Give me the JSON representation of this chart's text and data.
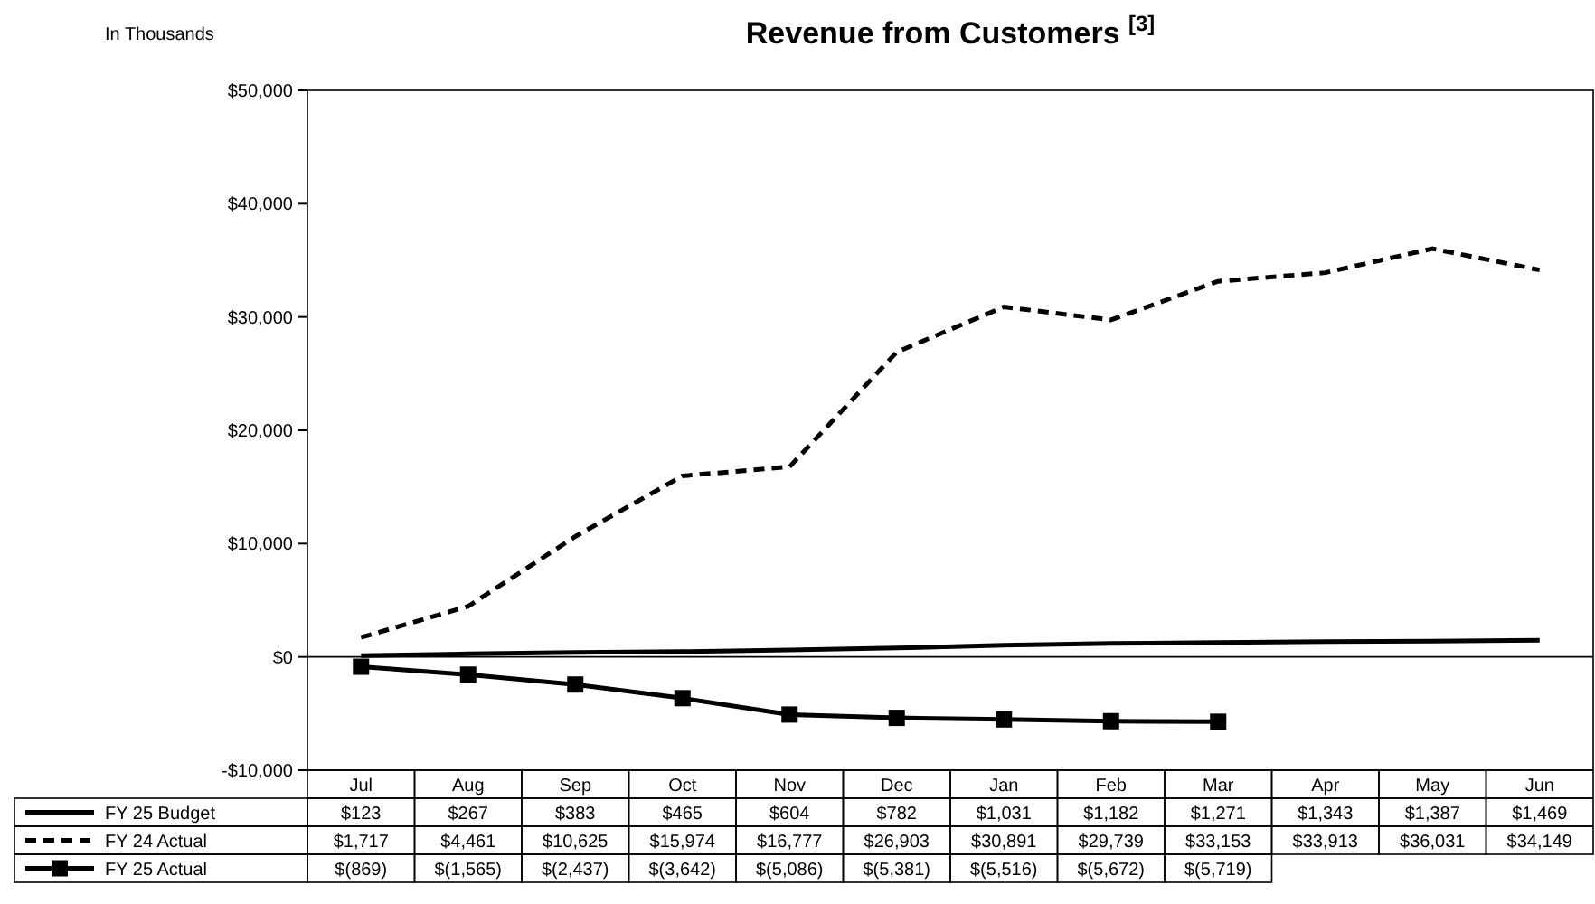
{
  "chart_data": {
    "type": "line",
    "title": "Revenue from Customers $^{[3]}$",
    "ylabel": "In Thousands",
    "categories": [
      "Jul",
      "Aug",
      "Sep",
      "Oct",
      "Nov",
      "Dec",
      "Jan",
      "Feb",
      "Mar",
      "Apr",
      "May",
      "Jun"
    ],
    "ylim": [
      -10000,
      50000
    ],
    "yticks": [
      {
        "value": -10000,
        "label": "-$10,000"
      },
      {
        "value": 0,
        "label": "$0"
      },
      {
        "value": 10000,
        "label": "$10,000"
      },
      {
        "value": 20000,
        "label": "$20,000"
      },
      {
        "value": 30000,
        "label": "$30,000"
      },
      {
        "value": 40000,
        "label": "$40,000"
      },
      {
        "value": 50000,
        "label": "$50,000"
      }
    ],
    "legend": "bottom left",
    "series": [
      {
        "name": "FY 25 Budget",
        "color": "#000000",
        "line_style": "solid",
        "marker": "none",
        "values": [
          123,
          267,
          383,
          465,
          604,
          782,
          1031,
          1182,
          1271,
          1343,
          1387,
          1469
        ],
        "value_labels": [
          "$123",
          "$267",
          "$383",
          "$465",
          "$604",
          "$782",
          "$1,031",
          "$1,182",
          "$1,271",
          "$1,343",
          "$1,387",
          "$1,469"
        ]
      },
      {
        "name": "FY 24 Actual",
        "color": "#000000",
        "line_style": "dashed",
        "marker": "none",
        "values": [
          1717,
          4461,
          10625,
          15974,
          16777,
          26903,
          30891,
          29739,
          33153,
          33913,
          36031,
          34149
        ],
        "value_labels": [
          "$1,717",
          "$4,461",
          "$10,625",
          "$15,974",
          "$16,777",
          "$26,903",
          "$30,891",
          "$29,739",
          "$33,153",
          "$33,913",
          "$36,031",
          "$34,149"
        ]
      },
      {
        "name": "FY 25 Actual",
        "color": "#000000",
        "line_style": "solid",
        "marker": "square",
        "values": [
          -869,
          -1565,
          -2437,
          -3642,
          -5086,
          -5381,
          -5516,
          -5672,
          -5719,
          null,
          null,
          null
        ],
        "value_labels": [
          "$(869)",
          "$(1,565)",
          "$(2,437)",
          "$(3,642)",
          "$(5,086)",
          "$(5,381)",
          "$(5,516)",
          "$(5,672)",
          "$(5,719)",
          null,
          null,
          null
        ]
      }
    ]
  }
}
